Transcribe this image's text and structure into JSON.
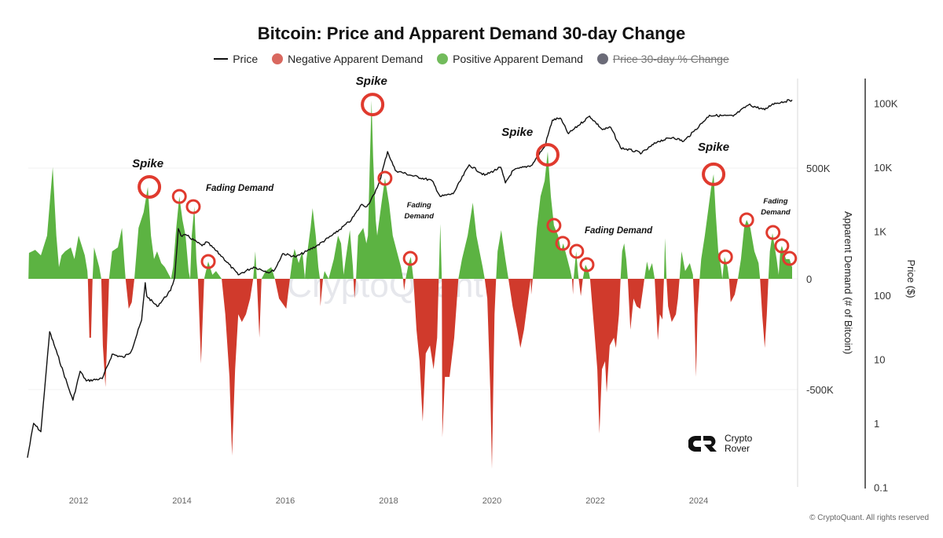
{
  "chart_data": {
    "type": "area+line",
    "title": "Bitcoin: Price and Apparent Demand 30-day Change",
    "legend": [
      {
        "label": "Price",
        "color": "#111111",
        "marker": "line"
      },
      {
        "label": "Negative Apparent Demand",
        "color": "#d9534f",
        "marker": "dot"
      },
      {
        "label": "Positive Apparent Demand",
        "color": "#5cb85c",
        "marker": "dot"
      },
      {
        "label": "Price 30-day % Change",
        "color": "#6b6b78",
        "marker": "dot",
        "hidden": true
      }
    ],
    "legend_position": "top",
    "x_ticks": [
      "2012",
      "2014",
      "2016",
      "2018",
      "2020",
      "2022",
      "2024"
    ],
    "xlim": [
      2011.0,
      2025.85
    ],
    "y_left": {
      "label": "Apparent Demand (# of Bitcoin)",
      "ticks": [
        "500K",
        "0",
        "-500K"
      ],
      "tick_values": [
        500,
        0,
        -500
      ],
      "unit": "thousand BTC",
      "range": [
        -940,
        900
      ]
    },
    "y_right": {
      "label": "Price ($)",
      "scale": "log",
      "ticks": [
        "100K",
        "10K",
        "1K",
        "100",
        "10",
        "1",
        "0.1"
      ],
      "tick_values": [
        100000,
        10000,
        1000,
        100,
        10,
        1,
        0.1
      ],
      "range": [
        0.1,
        170000
      ]
    },
    "grid": "horizontal",
    "colors": {
      "positive": "#5cb342",
      "negative": "#d03a2c",
      "price": "#111111",
      "circle": "#e03a2e"
    },
    "demand_series": [
      [
        2011.03,
        0
      ],
      [
        2011.04,
        117
      ],
      [
        2011.16,
        131
      ],
      [
        2011.27,
        106
      ],
      [
        2011.39,
        195
      ],
      [
        2011.5,
        504
      ],
      [
        2011.57,
        195
      ],
      [
        2011.62,
        53
      ],
      [
        2011.67,
        106
      ],
      [
        2011.74,
        124
      ],
      [
        2011.85,
        142
      ],
      [
        2011.92,
        89
      ],
      [
        2012.0,
        195
      ],
      [
        2012.12,
        106
      ],
      [
        2012.17,
        35
      ],
      [
        2012.18,
        0
      ],
      [
        2012.21,
        -266
      ],
      [
        2012.24,
        -266
      ],
      [
        2012.27,
        0
      ],
      [
        2012.3,
        142
      ],
      [
        2012.4,
        53
      ],
      [
        2012.44,
        0
      ],
      [
        2012.47,
        -301
      ],
      [
        2012.52,
        -489
      ],
      [
        2012.56,
        -230
      ],
      [
        2012.59,
        0
      ],
      [
        2012.65,
        124
      ],
      [
        2012.76,
        142
      ],
      [
        2012.84,
        230
      ],
      [
        2012.88,
        89
      ],
      [
        2012.91,
        0
      ],
      [
        2012.97,
        -135
      ],
      [
        2013.03,
        -106
      ],
      [
        2013.08,
        0
      ],
      [
        2013.16,
        230
      ],
      [
        2013.26,
        301
      ],
      [
        2013.34,
        415
      ],
      [
        2013.4,
        195
      ],
      [
        2013.46,
        89
      ],
      [
        2013.52,
        124
      ],
      [
        2013.6,
        71
      ],
      [
        2013.67,
        53
      ],
      [
        2013.79,
        0
      ],
      [
        2013.83,
        53
      ],
      [
        2013.89,
        230
      ],
      [
        2013.95,
        372
      ],
      [
        2014.01,
        266
      ],
      [
        2014.07,
        195
      ],
      [
        2014.13,
        35
      ],
      [
        2014.16,
        0
      ],
      [
        2014.19,
        195
      ],
      [
        2014.24,
        326
      ],
      [
        2014.28,
        89
      ],
      [
        2014.31,
        0
      ],
      [
        2014.37,
        -383
      ],
      [
        2014.43,
        0
      ],
      [
        2014.51,
        78
      ],
      [
        2014.59,
        18
      ],
      [
        2014.66,
        35
      ],
      [
        2014.77,
        0
      ],
      [
        2014.84,
        -160
      ],
      [
        2014.92,
        -443
      ],
      [
        2014.97,
        -798
      ],
      [
        2015.03,
        -408
      ],
      [
        2015.09,
        -160
      ],
      [
        2015.16,
        -195
      ],
      [
        2015.24,
        -160
      ],
      [
        2015.32,
        -89
      ],
      [
        2015.38,
        0
      ],
      [
        2015.42,
        124
      ],
      [
        2015.45,
        0
      ],
      [
        2015.5,
        -266
      ],
      [
        2015.54,
        0
      ],
      [
        2015.62,
        35
      ],
      [
        2015.73,
        53
      ],
      [
        2015.8,
        0
      ],
      [
        2015.88,
        -89
      ],
      [
        2016.02,
        -135
      ],
      [
        2016.09,
        0
      ],
      [
        2016.14,
        89
      ],
      [
        2016.18,
        135
      ],
      [
        2016.26,
        71
      ],
      [
        2016.33,
        124
      ],
      [
        2016.38,
        0
      ],
      [
        2016.41,
        89
      ],
      [
        2016.49,
        230
      ],
      [
        2016.53,
        319
      ],
      [
        2016.59,
        195
      ],
      [
        2016.64,
        53
      ],
      [
        2016.67,
        0
      ],
      [
        2016.68,
        -124
      ],
      [
        2016.73,
        0
      ],
      [
        2016.76,
        35
      ],
      [
        2016.84,
        0
      ],
      [
        2016.94,
        89
      ],
      [
        2017.02,
        195
      ],
      [
        2017.08,
        160
      ],
      [
        2017.13,
        18
      ],
      [
        2017.17,
        89
      ],
      [
        2017.25,
        220
      ],
      [
        2017.31,
        53
      ],
      [
        2017.34,
        -89
      ],
      [
        2017.37,
        0
      ],
      [
        2017.41,
        195
      ],
      [
        2017.51,
        230
      ],
      [
        2017.57,
        160
      ],
      [
        2017.6,
        195
      ],
      [
        2017.64,
        550
      ],
      [
        2017.67,
        805
      ],
      [
        2017.7,
        550
      ],
      [
        2017.75,
        266
      ],
      [
        2017.78,
        195
      ],
      [
        2017.86,
        337
      ],
      [
        2017.93,
        454
      ],
      [
        2018.01,
        337
      ],
      [
        2018.08,
        195
      ],
      [
        2018.16,
        124
      ],
      [
        2018.24,
        53
      ],
      [
        2018.28,
        0
      ],
      [
        2018.3,
        -53
      ],
      [
        2018.33,
        0
      ],
      [
        2018.39,
        71
      ],
      [
        2018.43,
        99
      ],
      [
        2018.48,
        0
      ],
      [
        2018.54,
        -230
      ],
      [
        2018.6,
        -372
      ],
      [
        2018.66,
        -645
      ],
      [
        2018.72,
        -337
      ],
      [
        2018.8,
        -301
      ],
      [
        2018.87,
        -408
      ],
      [
        2018.94,
        -266
      ],
      [
        2018.97,
        0
      ],
      [
        2019.0,
        248
      ],
      [
        2019.03,
        0
      ],
      [
        2019.04,
        -716
      ],
      [
        2019.09,
        -443
      ],
      [
        2019.18,
        -443
      ],
      [
        2019.27,
        -266
      ],
      [
        2019.35,
        0
      ],
      [
        2019.42,
        89
      ],
      [
        2019.53,
        195
      ],
      [
        2019.63,
        344
      ],
      [
        2019.7,
        195
      ],
      [
        2019.76,
        124
      ],
      [
        2019.82,
        53
      ],
      [
        2019.86,
        0
      ],
      [
        2019.91,
        -89
      ],
      [
        2019.97,
        -514
      ],
      [
        2020.0,
        -858
      ],
      [
        2020.05,
        -160
      ],
      [
        2020.08,
        0
      ],
      [
        2020.11,
        124
      ],
      [
        2020.18,
        220
      ],
      [
        2020.26,
        89
      ],
      [
        2020.32,
        0
      ],
      [
        2020.4,
        -124
      ],
      [
        2020.49,
        -230
      ],
      [
        2020.55,
        -312
      ],
      [
        2020.62,
        -230
      ],
      [
        2020.7,
        -89
      ],
      [
        2020.75,
        0
      ],
      [
        2020.76,
        -71
      ],
      [
        2020.79,
        0
      ],
      [
        2020.87,
        230
      ],
      [
        2020.94,
        372
      ],
      [
        2021.02,
        443
      ],
      [
        2021.08,
        574
      ],
      [
        2021.14,
        372
      ],
      [
        2021.2,
        241
      ],
      [
        2021.28,
        195
      ],
      [
        2021.34,
        124
      ],
      [
        2021.38,
        160
      ],
      [
        2021.46,
        89
      ],
      [
        2021.52,
        35
      ],
      [
        2021.55,
        0
      ],
      [
        2021.57,
        -71
      ],
      [
        2021.58,
        0
      ],
      [
        2021.63,
        124
      ],
      [
        2021.67,
        18
      ],
      [
        2021.72,
        -78
      ],
      [
        2021.76,
        0
      ],
      [
        2021.81,
        64
      ],
      [
        2021.87,
        35
      ],
      [
        2021.9,
        0
      ],
      [
        2021.98,
        -230
      ],
      [
        2022.04,
        -408
      ],
      [
        2022.08,
        -699
      ],
      [
        2022.13,
        -408
      ],
      [
        2022.19,
        -372
      ],
      [
        2022.22,
        -514
      ],
      [
        2022.28,
        -301
      ],
      [
        2022.36,
        -266
      ],
      [
        2022.4,
        -312
      ],
      [
        2022.46,
        -160
      ],
      [
        2022.49,
        0
      ],
      [
        2022.52,
        124
      ],
      [
        2022.56,
        160
      ],
      [
        2022.6,
        89
      ],
      [
        2022.63,
        0
      ],
      [
        2022.68,
        -230
      ],
      [
        2022.74,
        -89
      ],
      [
        2022.8,
        -124
      ],
      [
        2022.87,
        -135
      ],
      [
        2022.92,
        -53
      ],
      [
        2022.95,
        0
      ],
      [
        2023.0,
        78
      ],
      [
        2023.04,
        35
      ],
      [
        2023.1,
        71
      ],
      [
        2023.15,
        0
      ],
      [
        2023.21,
        -277
      ],
      [
        2023.25,
        -160
      ],
      [
        2023.3,
        -184
      ],
      [
        2023.33,
        0
      ],
      [
        2023.35,
        184
      ],
      [
        2023.38,
        0
      ],
      [
        2023.41,
        -124
      ],
      [
        2023.48,
        -195
      ],
      [
        2023.56,
        -160
      ],
      [
        2023.6,
        -89
      ],
      [
        2023.63,
        0
      ],
      [
        2023.67,
        124
      ],
      [
        2023.74,
        35
      ],
      [
        2023.83,
        71
      ],
      [
        2023.89,
        18
      ],
      [
        2023.92,
        -160
      ],
      [
        2023.95,
        -443
      ],
      [
        2023.98,
        -160
      ],
      [
        2024.02,
        0
      ],
      [
        2024.05,
        89
      ],
      [
        2024.12,
        195
      ],
      [
        2024.2,
        337
      ],
      [
        2024.24,
        408
      ],
      [
        2024.29,
        472
      ],
      [
        2024.33,
        301
      ],
      [
        2024.38,
        124
      ],
      [
        2024.43,
        53
      ],
      [
        2024.46,
        0
      ],
      [
        2024.5,
        99
      ],
      [
        2024.56,
        53
      ],
      [
        2024.59,
        0
      ],
      [
        2024.62,
        -106
      ],
      [
        2024.7,
        -71
      ],
      [
        2024.76,
        0
      ],
      [
        2024.82,
        89
      ],
      [
        2024.88,
        230
      ],
      [
        2024.93,
        266
      ],
      [
        2025.0,
        230
      ],
      [
        2025.08,
        124
      ],
      [
        2025.16,
        71
      ],
      [
        2025.19,
        0
      ],
      [
        2025.23,
        -160
      ],
      [
        2025.28,
        -312
      ],
      [
        2025.32,
        -160
      ],
      [
        2025.35,
        0
      ],
      [
        2025.38,
        124
      ],
      [
        2025.43,
        206
      ],
      [
        2025.51,
        89
      ],
      [
        2025.55,
        18
      ],
      [
        2025.58,
        124
      ],
      [
        2025.61,
        149
      ],
      [
        2025.69,
        89
      ],
      [
        2025.76,
        89
      ],
      [
        2025.81,
        53
      ],
      [
        2025.81,
        0
      ]
    ],
    "price_series": [
      [
        2011.01,
        0.29
      ],
      [
        2011.13,
        1.0
      ],
      [
        2011.27,
        0.74
      ],
      [
        2011.36,
        4.9
      ],
      [
        2011.44,
        27
      ],
      [
        2011.59,
        12
      ],
      [
        2011.8,
        3.7
      ],
      [
        2011.89,
        2.3
      ],
      [
        2012.03,
        6.5
      ],
      [
        2012.15,
        4.6
      ],
      [
        2012.46,
        5
      ],
      [
        2012.65,
        12
      ],
      [
        2012.87,
        10.7
      ],
      [
        2013.02,
        13.4
      ],
      [
        2013.22,
        41
      ],
      [
        2013.29,
        157
      ],
      [
        2013.32,
        97
      ],
      [
        2013.52,
        67
      ],
      [
        2013.78,
        118
      ],
      [
        2013.86,
        190
      ],
      [
        2013.93,
        1100
      ],
      [
        2013.98,
        857
      ],
      [
        2014.1,
        857
      ],
      [
        2014.39,
        594
      ],
      [
        2014.48,
        682
      ],
      [
        2014.78,
        400
      ],
      [
        2015.09,
        209
      ],
      [
        2015.39,
        277
      ],
      [
        2015.7,
        227
      ],
      [
        2015.8,
        254
      ],
      [
        2015.95,
        448
      ],
      [
        2016.21,
        400
      ],
      [
        2016.41,
        486
      ],
      [
        2016.61,
        594
      ],
      [
        2016.97,
        935
      ],
      [
        2017.28,
        1510
      ],
      [
        2017.48,
        2640
      ],
      [
        2017.58,
        2440
      ],
      [
        2017.73,
        3860
      ],
      [
        2017.83,
        6200
      ],
      [
        2017.98,
        17600
      ],
      [
        2018.13,
        8950
      ],
      [
        2018.43,
        7500
      ],
      [
        2018.84,
        6200
      ],
      [
        2019.0,
        3500
      ],
      [
        2019.25,
        3860
      ],
      [
        2019.56,
        10900
      ],
      [
        2019.86,
        7500
      ],
      [
        2020.17,
        10000
      ],
      [
        2020.26,
        5700
      ],
      [
        2020.41,
        8950
      ],
      [
        2020.78,
        10900
      ],
      [
        2020.87,
        14500
      ],
      [
        2021.02,
        21000
      ],
      [
        2021.17,
        54500
      ],
      [
        2021.32,
        59000
      ],
      [
        2021.48,
        33500
      ],
      [
        2021.89,
        63000
      ],
      [
        2022.14,
        38700
      ],
      [
        2022.3,
        42000
      ],
      [
        2022.49,
        20200
      ],
      [
        2022.9,
        16700
      ],
      [
        2023.21,
        25400
      ],
      [
        2023.51,
        29400
      ],
      [
        2023.71,
        25400
      ],
      [
        2023.91,
        36600
      ],
      [
        2024.21,
        65000
      ],
      [
        2024.67,
        63000
      ],
      [
        2024.97,
        95000
      ],
      [
        2025.28,
        79000
      ],
      [
        2025.43,
        98000
      ],
      [
        2025.81,
        113000
      ]
    ],
    "circles": [
      {
        "year": 2013.37,
        "demand": 415,
        "size": "large"
      },
      {
        "year": 2013.95,
        "demand": 372,
        "size": "small"
      },
      {
        "year": 2014.22,
        "demand": 326,
        "size": "small"
      },
      {
        "year": 2014.51,
        "demand": 78,
        "size": "small"
      },
      {
        "year": 2017.69,
        "demand": 787,
        "size": "large"
      },
      {
        "year": 2017.93,
        "demand": 454,
        "size": "small"
      },
      {
        "year": 2018.42,
        "demand": 92,
        "size": "small"
      },
      {
        "year": 2021.08,
        "demand": 560,
        "size": "large"
      },
      {
        "year": 2021.2,
        "demand": 241,
        "size": "small"
      },
      {
        "year": 2021.37,
        "demand": 160,
        "size": "small"
      },
      {
        "year": 2021.64,
        "demand": 124,
        "size": "small"
      },
      {
        "year": 2021.84,
        "demand": 64,
        "size": "small"
      },
      {
        "year": 2024.29,
        "demand": 472,
        "size": "large"
      },
      {
        "year": 2024.52,
        "demand": 99,
        "size": "small"
      },
      {
        "year": 2024.93,
        "demand": 266,
        "size": "small"
      },
      {
        "year": 2025.44,
        "demand": 209,
        "size": "small"
      },
      {
        "year": 2025.61,
        "demand": 149,
        "size": "small"
      },
      {
        "year": 2025.76,
        "demand": 92,
        "size": "small"
      }
    ],
    "annotations": [
      {
        "text": "Spike",
        "year": 2013.34,
        "demand": 504,
        "style": "spike"
      },
      {
        "text": "Spike",
        "year": 2017.67,
        "demand": 876,
        "style": "spike"
      },
      {
        "text": "Spike",
        "year": 2020.49,
        "demand": 645,
        "style": "spike"
      },
      {
        "text": "Spike",
        "year": 2024.29,
        "demand": 578,
        "style": "spike"
      },
      {
        "text": "Fading Demand",
        "year": 2015.12,
        "demand": 397,
        "style": "fade"
      },
      {
        "text": "Fading",
        "text2": "Demand",
        "year": 2018.59,
        "demand": 301,
        "style": "fade-small"
      },
      {
        "text": "Fading Demand",
        "year": 2022.45,
        "demand": 206,
        "style": "fade"
      },
      {
        "text": "Fading",
        "text2": "Demand",
        "year": 2025.49,
        "demand": 319,
        "style": "fade-small"
      }
    ]
  },
  "watermark": "CryptoQuant",
  "logo": {
    "line1": "Crypto",
    "line2": "Rover"
  },
  "copyright": "© CryptoQuant. All rights reserved"
}
